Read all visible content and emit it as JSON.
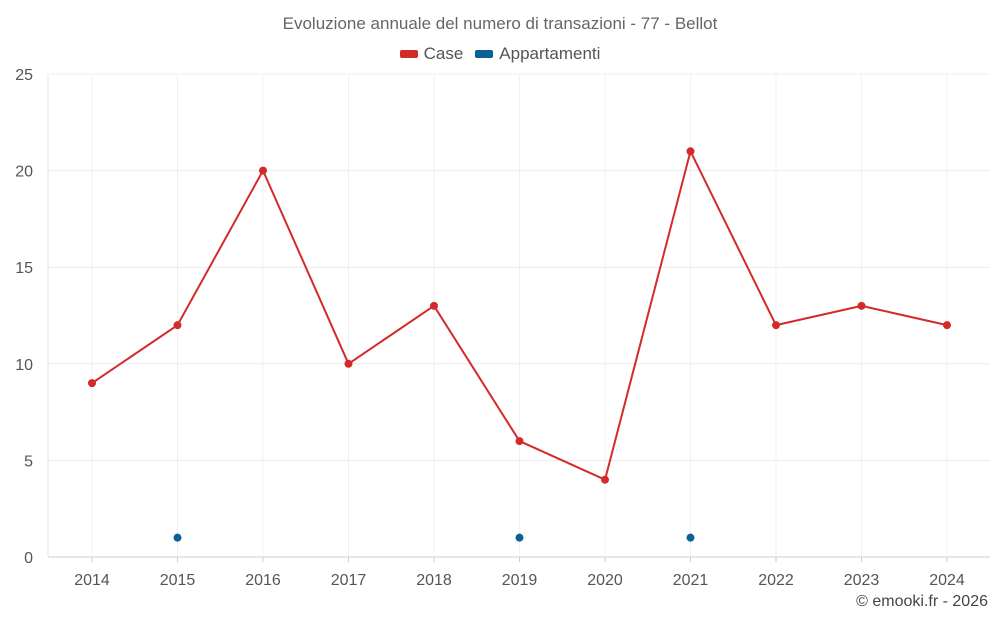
{
  "chart_data": {
    "type": "line",
    "title": "Evoluzione annuale del numero di transazioni - 77 - Bellot",
    "categories": [
      "2014",
      "2015",
      "2016",
      "2017",
      "2018",
      "2019",
      "2020",
      "2021",
      "2022",
      "2023",
      "2024"
    ],
    "ylim": [
      0,
      25
    ],
    "yticks": [
      0,
      5,
      10,
      15,
      20,
      25
    ],
    "grid": true,
    "legend_position": "top-center",
    "series": [
      {
        "name": "Case",
        "color": "#d32a2a",
        "values": [
          9,
          12,
          20,
          10,
          13,
          6,
          4,
          21,
          12,
          13,
          12
        ],
        "line": true
      },
      {
        "name": "Appartamenti",
        "color": "#0b6099",
        "values": [
          null,
          1,
          null,
          null,
          null,
          1,
          null,
          1,
          null,
          null,
          null
        ],
        "line": false
      }
    ]
  },
  "credit": "© emooki.fr - 2026"
}
